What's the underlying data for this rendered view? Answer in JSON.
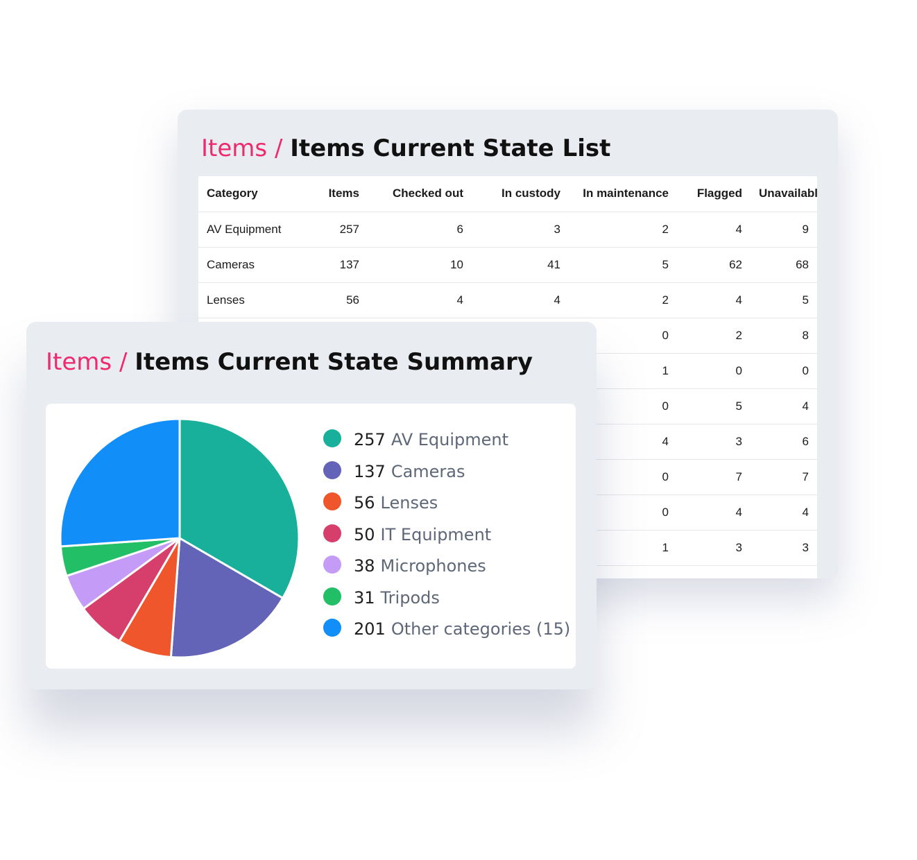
{
  "list_panel": {
    "breadcrumb": "Items",
    "separator": "/",
    "title": "Items Current State List",
    "columns": [
      "Category",
      "Items",
      "Checked out",
      "In custody",
      "In maintenance",
      "Flagged",
      "Unavailable"
    ],
    "rows": [
      [
        "AV Equipment",
        "257",
        "6",
        "3",
        "2",
        "4",
        "9"
      ],
      [
        "Cameras",
        "137",
        "10",
        "41",
        "5",
        "62",
        "68"
      ],
      [
        "Lenses",
        "56",
        "4",
        "4",
        "2",
        "4",
        "5"
      ],
      [
        "",
        "",
        "",
        "",
        "0",
        "2",
        "8"
      ],
      [
        "",
        "",
        "",
        "",
        "1",
        "0",
        "0"
      ],
      [
        "",
        "",
        "",
        "",
        "0",
        "5",
        "4"
      ],
      [
        "",
        "",
        "",
        "",
        "4",
        "3",
        "6"
      ],
      [
        "",
        "",
        "",
        "",
        "0",
        "7",
        "7"
      ],
      [
        "",
        "",
        "",
        "",
        "0",
        "4",
        "4"
      ],
      [
        "",
        "",
        "",
        "",
        "1",
        "3",
        "3"
      ]
    ]
  },
  "summary_panel": {
    "breadcrumb": "Items",
    "separator": "/",
    "title": "Items Current State Summary"
  },
  "chart_data": {
    "type": "pie",
    "categories": [
      "AV Equipment",
      "Cameras",
      "Lenses",
      "IT Equipment",
      "Microphones",
      "Tripods",
      "Other categories (15)"
    ],
    "values": [
      257,
      137,
      56,
      50,
      38,
      31,
      201
    ],
    "colors": [
      "#19b09b",
      "#6363b8",
      "#f0562b",
      "#d63e6c",
      "#c49cf8",
      "#22bf66",
      "#118ef8"
    ],
    "legend": [
      {
        "value": "257",
        "label": "AV Equipment"
      },
      {
        "value": "137",
        "label": "Cameras"
      },
      {
        "value": "56",
        "label": "Lenses"
      },
      {
        "value": "50",
        "label": "IT Equipment"
      },
      {
        "value": "38",
        "label": "Microphones"
      },
      {
        "value": "31",
        "label": "Tripods"
      },
      {
        "value": "201",
        "label": "Other categories (15)"
      }
    ]
  }
}
